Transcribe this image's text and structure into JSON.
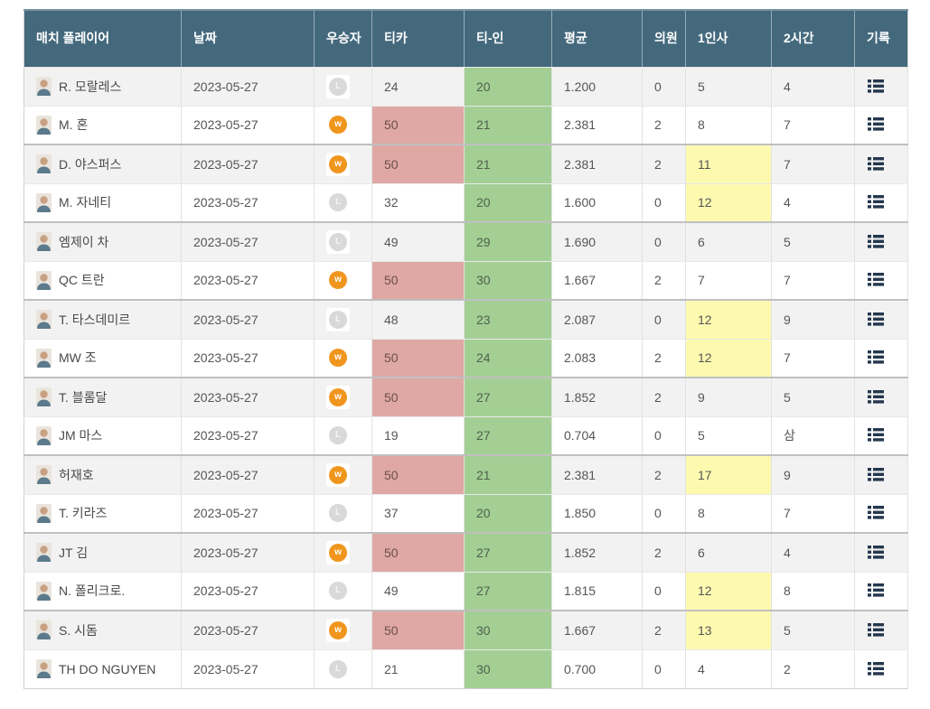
{
  "table": {
    "name": "match-results-table",
    "columns": [
      {
        "key": "player",
        "label": "매치 플레이어"
      },
      {
        "key": "date",
        "label": "날짜"
      },
      {
        "key": "winner",
        "label": "우승자"
      },
      {
        "key": "caroms",
        "label": "티카"
      },
      {
        "key": "tee_in",
        "label": "티-인"
      },
      {
        "key": "average",
        "label": "평균"
      },
      {
        "key": "uiwon",
        "label": "의원"
      },
      {
        "key": "greeting",
        "label": "1인사"
      },
      {
        "key": "hours",
        "label": "2시간"
      },
      {
        "key": "record",
        "label": "기록"
      }
    ],
    "rows": [
      {
        "player": "R. 모랄레스",
        "date": "2023-05-27",
        "result": "L",
        "caroms": "24",
        "caroms_highlight": false,
        "tee_in": "20",
        "average": "1.200",
        "uiwon": "0",
        "greeting": "5",
        "greeting_highlight": false,
        "hours": "4"
      },
      {
        "player": "M. 혼",
        "date": "2023-05-27",
        "result": "W",
        "caroms": "50",
        "caroms_highlight": true,
        "tee_in": "21",
        "average": "2.381",
        "uiwon": "2",
        "greeting": "8",
        "greeting_highlight": false,
        "hours": "7"
      },
      {
        "player": "D. 야스퍼스",
        "date": "2023-05-27",
        "result": "W",
        "caroms": "50",
        "caroms_highlight": true,
        "tee_in": "21",
        "average": "2.381",
        "uiwon": "2",
        "greeting": "11",
        "greeting_highlight": true,
        "hours": "7"
      },
      {
        "player": "M. 자네티",
        "date": "2023-05-27",
        "result": "L",
        "caroms": "32",
        "caroms_highlight": false,
        "tee_in": "20",
        "average": "1.600",
        "uiwon": "0",
        "greeting": "12",
        "greeting_highlight": true,
        "hours": "4"
      },
      {
        "player": "엠제이 차",
        "date": "2023-05-27",
        "result": "L",
        "caroms": "49",
        "caroms_highlight": false,
        "tee_in": "29",
        "average": "1.690",
        "uiwon": "0",
        "greeting": "6",
        "greeting_highlight": false,
        "hours": "5"
      },
      {
        "player": "QC 트란",
        "date": "2023-05-27",
        "result": "W",
        "caroms": "50",
        "caroms_highlight": true,
        "tee_in": "30",
        "average": "1.667",
        "uiwon": "2",
        "greeting": "7",
        "greeting_highlight": false,
        "hours": "7"
      },
      {
        "player": "T. 타스데미르",
        "date": "2023-05-27",
        "result": "L",
        "caroms": "48",
        "caroms_highlight": false,
        "tee_in": "23",
        "average": "2.087",
        "uiwon": "0",
        "greeting": "12",
        "greeting_highlight": true,
        "hours": "9"
      },
      {
        "player": "MW 조",
        "date": "2023-05-27",
        "result": "W",
        "caroms": "50",
        "caroms_highlight": true,
        "tee_in": "24",
        "average": "2.083",
        "uiwon": "2",
        "greeting": "12",
        "greeting_highlight": true,
        "hours": "7"
      },
      {
        "player": "T. 블롬달",
        "date": "2023-05-27",
        "result": "W",
        "caroms": "50",
        "caroms_highlight": true,
        "tee_in": "27",
        "average": "1.852",
        "uiwon": "2",
        "greeting": "9",
        "greeting_highlight": false,
        "hours": "5"
      },
      {
        "player": "JM 마스",
        "date": "2023-05-27",
        "result": "L",
        "caroms": "19",
        "caroms_highlight": false,
        "tee_in": "27",
        "average": "0.704",
        "uiwon": "0",
        "greeting": "5",
        "greeting_highlight": false,
        "hours": "삼"
      },
      {
        "player": "허재호",
        "date": "2023-05-27",
        "result": "W",
        "caroms": "50",
        "caroms_highlight": true,
        "tee_in": "21",
        "average": "2.381",
        "uiwon": "2",
        "greeting": "17",
        "greeting_highlight": true,
        "hours": "9"
      },
      {
        "player": "T. 키라즈",
        "date": "2023-05-27",
        "result": "L",
        "caroms": "37",
        "caroms_highlight": false,
        "tee_in": "20",
        "average": "1.850",
        "uiwon": "0",
        "greeting": "8",
        "greeting_highlight": false,
        "hours": "7"
      },
      {
        "player": "JT 김",
        "date": "2023-05-27",
        "result": "W",
        "caroms": "50",
        "caroms_highlight": true,
        "tee_in": "27",
        "average": "1.852",
        "uiwon": "2",
        "greeting": "6",
        "greeting_highlight": false,
        "hours": "4"
      },
      {
        "player": "N. 폴리크로.",
        "date": "2023-05-27",
        "result": "L",
        "caroms": "49",
        "caroms_highlight": false,
        "tee_in": "27",
        "average": "1.815",
        "uiwon": "0",
        "greeting": "12",
        "greeting_highlight": true,
        "hours": "8"
      },
      {
        "player": "S. 시돔",
        "date": "2023-05-27",
        "result": "W",
        "caroms": "50",
        "caroms_highlight": true,
        "tee_in": "30",
        "average": "1.667",
        "uiwon": "2",
        "greeting": "13",
        "greeting_highlight": true,
        "hours": "5"
      },
      {
        "player": "TH DO NGUYEN",
        "date": "2023-05-27",
        "result": "L",
        "caroms": "21",
        "caroms_highlight": false,
        "tee_in": "30",
        "average": "0.700",
        "uiwon": "0",
        "greeting": "4",
        "greeting_highlight": false,
        "hours": "2"
      }
    ],
    "icons": {
      "record": "list-icon",
      "avatar": "person-photo"
    },
    "colors": {
      "header_bg": "#44697d",
      "header_text": "#ffffff",
      "win_badge": "#f0961e",
      "lose_badge": "#d9d9d9",
      "caroms_highlight": "#dfa8a4",
      "tee_in_column": "#a3cf94",
      "greeting_highlight": "#fdfab0",
      "row_alternate": "#f2f2f2",
      "record_icon": "#24384e"
    }
  }
}
